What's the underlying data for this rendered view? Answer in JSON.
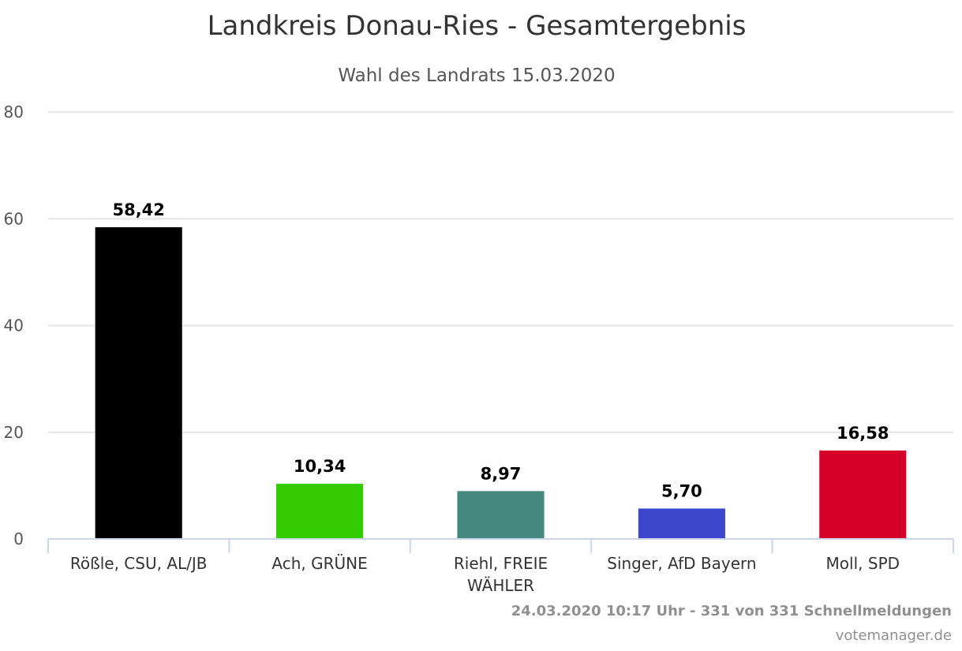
{
  "chart_data": {
    "type": "bar",
    "title": "Landkreis Donau-Ries - Gesamtergebnis",
    "subtitle": "Wahl des Landrats 15.03.2020",
    "categories": [
      [
        "Rößle, CSU, AL/JB"
      ],
      [
        "Ach, GRÜNE"
      ],
      [
        "Riehl, FREIE",
        "WÄHLER"
      ],
      [
        "Singer, AfD Bayern"
      ],
      [
        "Moll, SPD"
      ]
    ],
    "values": [
      58.42,
      10.34,
      8.97,
      5.7,
      16.58
    ],
    "value_labels": [
      "58,42",
      "10,34",
      "8,97",
      "5,70",
      "16,58"
    ],
    "colors": [
      "#000000",
      "#33cc00",
      "#448880",
      "#3d46cc",
      "#d40029"
    ],
    "ylim": [
      0,
      80
    ],
    "yticks": [
      "0",
      "20",
      "40",
      "60",
      "80"
    ],
    "grid": true,
    "legend": "none"
  },
  "credits": {
    "line1": "24.03.2020 10:17 Uhr - 331 von 331 Schnellmeldungen",
    "line2": "votemanager.de"
  }
}
